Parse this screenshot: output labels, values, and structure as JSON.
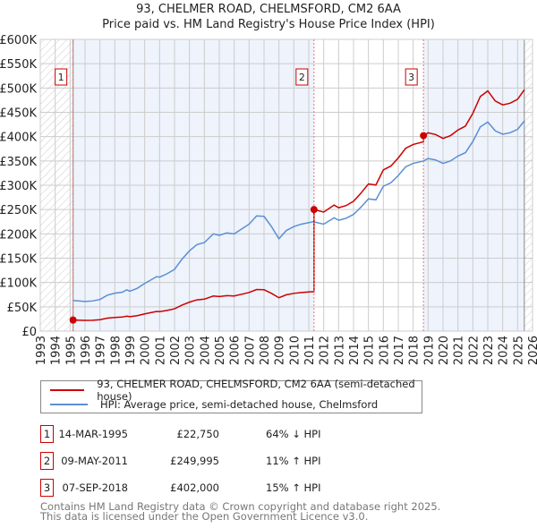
{
  "chart_data": {
    "type": "line",
    "title": "93, CHELMER ROAD, CHELMSFORD, CM2 6AA",
    "subtitle": "Price paid vs. HM Land Registry's House Price Index (HPI)",
    "xlim": [
      1993,
      2026
    ],
    "ylim": [
      0,
      600000
    ],
    "y_ticks": [
      0,
      50000,
      100000,
      150000,
      200000,
      250000,
      300000,
      350000,
      400000,
      450000,
      500000,
      550000,
      600000
    ],
    "y_tick_labels": [
      "£0",
      "£50K",
      "£100K",
      "£150K",
      "£200K",
      "£250K",
      "£300K",
      "£350K",
      "£400K",
      "£450K",
      "£500K",
      "£550K",
      "£600K"
    ],
    "x_ticks": [
      "1993",
      "1994",
      "1995",
      "1996",
      "1997",
      "1998",
      "1999",
      "2000",
      "2001",
      "2002",
      "2003",
      "2004",
      "2005",
      "2006",
      "2007",
      "2008",
      "2009",
      "2010",
      "2011",
      "2012",
      "2013",
      "2014",
      "2015",
      "2016",
      "2017",
      "2018",
      "2019",
      "2020",
      "2021",
      "2022",
      "2023",
      "2024",
      "2025",
      "2026"
    ],
    "grid": true,
    "data_range": [
      1995.2,
      2025.45
    ],
    "series": [
      {
        "name": "93, CHELMER ROAD, CHELMSFORD, CM2 6AA (semi-detached house)",
        "color": "#cc0000",
        "derived_from": "hpi_indexed_from_sales"
      },
      {
        "name": "HPI: Average price, semi-detached house, Chelmsford",
        "color": "#5b8fd4",
        "x": [
          1995.2,
          1996,
          1996.5,
          1997,
          1997.5,
          1998,
          1998.5,
          1998.8,
          1999,
          1999.5,
          2000,
          2000.8,
          2001,
          2001.5,
          2002,
          2002.5,
          2003,
          2003.5,
          2004,
          2004.6,
          2005,
          2005.5,
          2006,
          2006.5,
          2007,
          2007.5,
          2008,
          2008.5,
          2009,
          2009.5,
          2010,
          2010.5,
          2011.3,
          2012,
          2012.7,
          2013,
          2013.5,
          2014,
          2014.5,
          2015,
          2015.5,
          2016,
          2016.5,
          2017,
          2017.5,
          2018,
          2018.7,
          2019,
          2019.5,
          2020,
          2020.5,
          2021,
          2021.5,
          2022,
          2022.5,
          2023,
          2023.5,
          2024,
          2024.5,
          2025,
          2025.45
        ],
        "y": [
          63000,
          61000,
          62000,
          65000,
          74000,
          78000,
          80000,
          85000,
          82000,
          88000,
          98000,
          112000,
          111000,
          118000,
          127000,
          148000,
          165000,
          178000,
          182000,
          200000,
          197000,
          202000,
          200000,
          210000,
          220000,
          237000,
          236000,
          215000,
          190000,
          207000,
          215000,
          220000,
          225000,
          220000,
          233000,
          228000,
          232000,
          240000,
          255000,
          272000,
          270000,
          298000,
          305000,
          320000,
          338000,
          345000,
          350000,
          355000,
          352000,
          345000,
          350000,
          360000,
          367000,
          390000,
          420000,
          430000,
          412000,
          405000,
          408000,
          415000,
          432000
        ]
      }
    ],
    "sales": [
      {
        "id": "1",
        "year": 1995.2,
        "date": "14-MAR-1995",
        "price": 22750,
        "price_label": "£22,750",
        "hpi_label": "64% ↓ HPI"
      },
      {
        "id": "2",
        "year": 2011.35,
        "date": "09-MAY-2011",
        "price": 249995,
        "price_label": "£249,995",
        "hpi_label": "11% ↑ HPI"
      },
      {
        "id": "3",
        "year": 2018.69,
        "date": "07-SEP-2018",
        "price": 402000,
        "price_label": "£402,000",
        "hpi_label": "15% ↑ HPI"
      }
    ]
  },
  "footer": {
    "line1": "Contains HM Land Registry data © Crown copyright and database right 2025.",
    "line2": "This data is licensed under the Open Government Licence v3.0."
  }
}
